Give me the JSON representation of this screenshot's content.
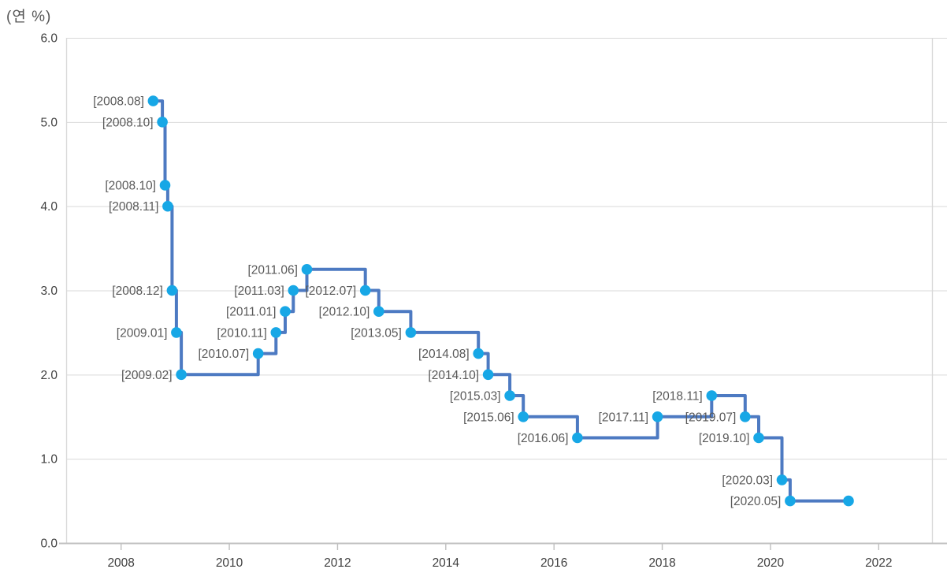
{
  "chart_data": {
    "type": "line",
    "subtype": "step-after",
    "title": "(연 %)",
    "ylim": [
      0.0,
      6.0
    ],
    "yticks": [
      {
        "value": 0,
        "label": "0.0"
      },
      {
        "value": 1,
        "label": "1.0"
      },
      {
        "value": 2,
        "label": "2.0"
      },
      {
        "value": 3,
        "label": "3.0"
      },
      {
        "value": 4,
        "label": "4.0"
      },
      {
        "value": 5,
        "label": "5.0"
      },
      {
        "value": 6,
        "label": "6.0"
      }
    ],
    "xticks": [
      {
        "value": 2008,
        "label": "2008"
      },
      {
        "value": 2010,
        "label": "2010"
      },
      {
        "value": 2012,
        "label": "2012"
      },
      {
        "value": 2014,
        "label": "2014"
      },
      {
        "value": 2016,
        "label": "2016"
      },
      {
        "value": 2018,
        "label": "2018"
      },
      {
        "value": 2020,
        "label": "2020"
      },
      {
        "value": 2022,
        "label": "2022"
      }
    ],
    "xlim": [
      2007,
      2023
    ],
    "grid": "horizontal-on",
    "legend": "none",
    "points": [
      {
        "date": "2008.08",
        "label": "[2008.08]",
        "x": 2008.6,
        "value": 5.25
      },
      {
        "date": "2008.10",
        "label": "[2008.10]",
        "x": 2008.77,
        "value": 5.0
      },
      {
        "date": "2008.10",
        "label": "[2008.10]",
        "x": 2008.82,
        "value": 4.25
      },
      {
        "date": "2008.11",
        "label": "[2008.11]",
        "x": 2008.87,
        "value": 4.0
      },
      {
        "date": "2008.12",
        "label": "[2008.12]",
        "x": 2008.95,
        "value": 3.0
      },
      {
        "date": "2009.01",
        "label": "[2009.01]",
        "x": 2009.03,
        "value": 2.5
      },
      {
        "date": "2009.02",
        "label": "[2009.02]",
        "x": 2009.12,
        "value": 2.0
      },
      {
        "date": "2010.07",
        "label": "[2010.07]",
        "x": 2010.54,
        "value": 2.25
      },
      {
        "date": "2010.11",
        "label": "[2010.11]",
        "x": 2010.87,
        "value": 2.5
      },
      {
        "date": "2011.01",
        "label": "[2011.01]",
        "x": 2011.04,
        "value": 2.75
      },
      {
        "date": "2011.03",
        "label": "[2011.03]",
        "x": 2011.19,
        "value": 3.0
      },
      {
        "date": "2011.06",
        "label": "[2011.06]",
        "x": 2011.44,
        "value": 3.25
      },
      {
        "date": "2012.07",
        "label": "[2012.07]",
        "x": 2012.52,
        "value": 3.0
      },
      {
        "date": "2012.10",
        "label": "[2012.10]",
        "x": 2012.77,
        "value": 2.75
      },
      {
        "date": "2013.05",
        "label": "[2013.05]",
        "x": 2013.36,
        "value": 2.5
      },
      {
        "date": "2014.08",
        "label": "[2014.08]",
        "x": 2014.61,
        "value": 2.25
      },
      {
        "date": "2014.10",
        "label": "[2014.10]",
        "x": 2014.79,
        "value": 2.0
      },
      {
        "date": "2015.03",
        "label": "[2015.03]",
        "x": 2015.19,
        "value": 1.75
      },
      {
        "date": "2015.06",
        "label": "[2015.06]",
        "x": 2015.44,
        "value": 1.5
      },
      {
        "date": "2016.06",
        "label": "[2016.06]",
        "x": 2016.44,
        "value": 1.25
      },
      {
        "date": "2017.11",
        "label": "[2017.11]",
        "x": 2017.92,
        "value": 1.5
      },
      {
        "date": "2018.11",
        "label": "[2018.11]",
        "x": 2018.92,
        "value": 1.75
      },
      {
        "date": "2019.07",
        "label": "[2019.07]",
        "x": 2019.54,
        "value": 1.5
      },
      {
        "date": "2019.10",
        "label": "[2019.10]",
        "x": 2019.79,
        "value": 1.25
      },
      {
        "date": "2020.03",
        "label": "[2020.03]",
        "x": 2020.22,
        "value": 0.75
      },
      {
        "date": "2020.05",
        "label": "[2020.05]",
        "x": 2020.37,
        "value": 0.5
      },
      {
        "date": "",
        "label": null,
        "x": 2021.45,
        "value": 0.5
      }
    ],
    "colors": {
      "line": "#4d7ac2",
      "marker": "#17a7e6",
      "point_label_text": "#595959",
      "axis_text": "#404040",
      "gridline": "#d9d9d9",
      "axis_line": "#c0c0c0",
      "border_line": "#d9d9d9",
      "tick_mark": "#bfbfbf"
    }
  }
}
